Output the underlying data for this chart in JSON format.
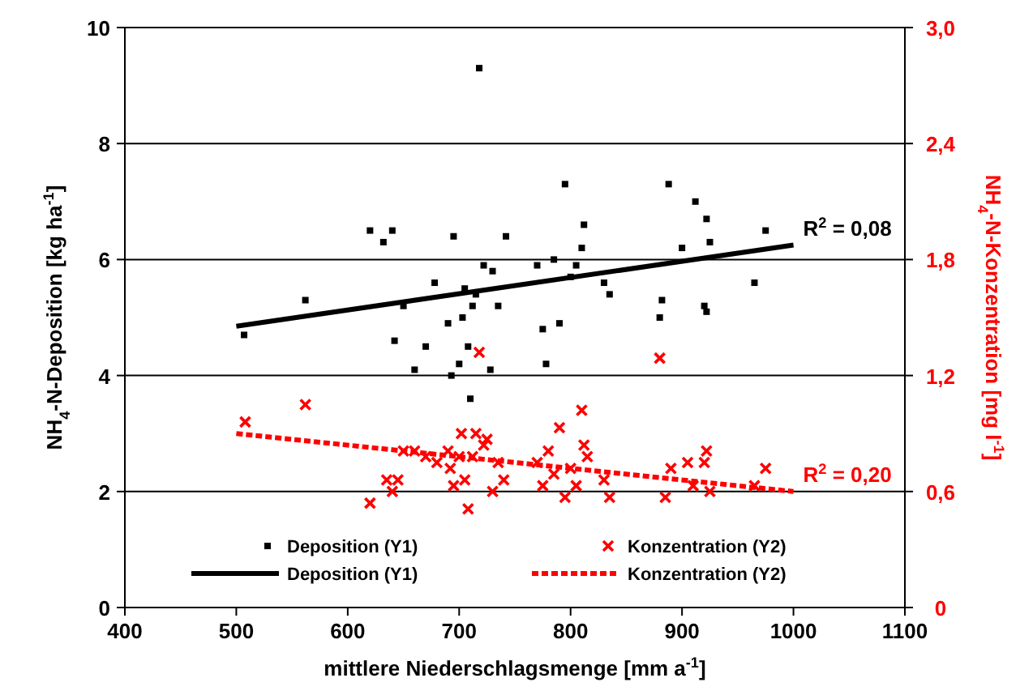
{
  "chart_data": {
    "type": "scatter",
    "xlabel": "mittlere Niederschlagsmenge [mm a$^{-1}$]",
    "ylabel": "NH$_{4}$-N-Deposition [kg ha$^{-1}$]",
    "y2label": "NH$_{4}$-N-Konzentration [mg l$^{-1}$]",
    "xlim": [
      400,
      1100
    ],
    "xticks": [
      400,
      500,
      600,
      700,
      800,
      900,
      1000,
      1100
    ],
    "ylim": [
      0,
      10
    ],
    "yticks": [
      0,
      2,
      4,
      6,
      8,
      10
    ],
    "y2lim": [
      0,
      3
    ],
    "y2ticks": [
      0,
      {
        "value": 0.6,
        "label": "0,6"
      },
      {
        "value": 1.2,
        "label": "1,2"
      },
      {
        "value": 1.8,
        "label": "1,8"
      },
      {
        "value": 2.4,
        "label": "2,4"
      },
      {
        "value": 3,
        "label": "3,0"
      }
    ],
    "grid": "y",
    "legend": "bottom",
    "annotations": [
      "R$^{2}$ = 0,08",
      "R$^{2}$ = 0,20"
    ],
    "series": [
      {
        "name": "Deposition (Y1)",
        "marker": "square",
        "color": "#000000",
        "x": [
          507,
          562,
          620,
          632,
          640,
          642,
          650,
          660,
          670,
          678,
          690,
          693,
          695,
          700,
          703,
          705,
          708,
          710,
          712,
          715,
          718,
          722,
          730,
          728,
          735,
          742,
          770,
          775,
          778,
          785,
          790,
          795,
          800,
          810,
          812,
          805,
          830,
          835,
          882,
          880,
          888,
          900,
          912,
          920,
          922,
          922,
          925,
          965,
          975
        ],
        "values": [
          4.7,
          5.3,
          6.5,
          6.3,
          6.5,
          4.6,
          5.2,
          4.1,
          4.5,
          5.6,
          4.9,
          4.0,
          6.4,
          4.2,
          5.0,
          5.5,
          4.5,
          3.6,
          5.2,
          5.4,
          9.3,
          5.9,
          5.8,
          4.1,
          5.2,
          6.4,
          5.9,
          4.8,
          4.2,
          6.0,
          4.9,
          7.3,
          5.7,
          6.2,
          6.6,
          5.9,
          5.6,
          5.4,
          5.3,
          5.0,
          7.3,
          6.2,
          7.0,
          5.2,
          5.1,
          6.7,
          6.3,
          5.6,
          6.5
        ]
      },
      {
        "name": "Konzentration (Y2)",
        "marker": "cross",
        "axis": "y2",
        "color": "#ff0000",
        "x": [
          508,
          562,
          620,
          635,
          640,
          645,
          650,
          660,
          670,
          680,
          690,
          692,
          695,
          700,
          702,
          705,
          708,
          712,
          715,
          718,
          722,
          725,
          730,
          735,
          740,
          770,
          775,
          780,
          785,
          790,
          795,
          800,
          805,
          810,
          812,
          815,
          830,
          835,
          880,
          885,
          890,
          905,
          910,
          920,
          922,
          925,
          965,
          975
        ],
        "values": [
          0.96,
          1.05,
          0.54,
          0.66,
          0.6,
          0.66,
          0.81,
          0.81,
          0.78,
          0.75,
          0.81,
          0.72,
          0.63,
          0.78,
          0.9,
          0.66,
          0.51,
          0.78,
          0.9,
          1.32,
          0.84,
          0.87,
          0.6,
          0.75,
          0.66,
          0.75,
          0.63,
          0.81,
          0.69,
          0.93,
          0.57,
          0.72,
          0.63,
          1.02,
          0.84,
          0.78,
          0.66,
          0.57,
          1.29,
          0.57,
          0.72,
          0.75,
          0.63,
          0.75,
          0.81,
          0.6,
          0.63,
          0.72
        ]
      },
      {
        "name": "Deposition (Y1)",
        "type": "line",
        "marker": "none",
        "line_style": "solid",
        "color": "#000000",
        "x": [
          500,
          1000
        ],
        "values": [
          4.85,
          6.25
        ]
      },
      {
        "name": "Konzentration (Y2)",
        "type": "line",
        "marker": "none",
        "line_style": "dashed",
        "axis": "y2",
        "color": "#ff0000",
        "x": [
          500,
          1000
        ],
        "values": [
          0.9,
          0.6
        ]
      }
    ]
  }
}
